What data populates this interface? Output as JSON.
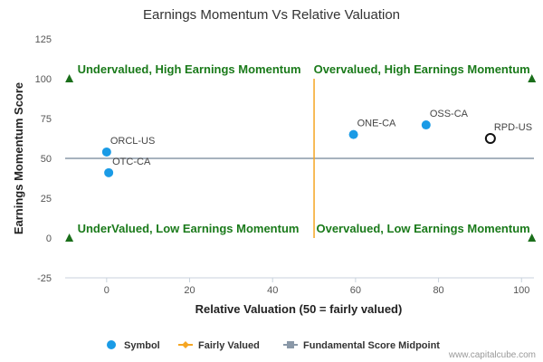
{
  "chart_data": {
    "type": "scatter",
    "title": "Earnings Momentum Vs Relative Valuation",
    "xlabel": "Relative Valuation (50 = fairly valued)",
    "ylabel": "Earnings Momentum Score",
    "xlim": [
      -10,
      103
    ],
    "ylim": [
      -25,
      125
    ],
    "x_ticks": [
      0,
      20,
      40,
      60,
      80,
      100
    ],
    "y_ticks": [
      -25,
      0,
      25,
      50,
      75,
      100,
      125
    ],
    "grid": false,
    "legend_position": "bottom",
    "series": [
      {
        "name": "Symbol",
        "color": "#1a9be6",
        "points": [
          {
            "label": "ORCL-US",
            "x": 0,
            "y": 54,
            "highlight": false
          },
          {
            "label": "OTC-CA",
            "x": 0.5,
            "y": 41,
            "highlight": false
          },
          {
            "label": "ONE-CA",
            "x": 59.5,
            "y": 65,
            "highlight": false
          },
          {
            "label": "OSS-CA",
            "x": 77,
            "y": 71,
            "highlight": false
          },
          {
            "label": "RPD-US",
            "x": 92.5,
            "y": 62.5,
            "highlight": true
          }
        ]
      },
      {
        "name": "Fairly Valued",
        "color": "#f5a623",
        "x": 50,
        "y_range": [
          0,
          100
        ]
      },
      {
        "name": "Fundamental Score Midpoint",
        "color": "#8a98a8",
        "y": 50
      }
    ],
    "corner_markers": [
      {
        "x": -9,
        "y": 100
      },
      {
        "x": 102.5,
        "y": 100
      },
      {
        "x": -9,
        "y": 0
      },
      {
        "x": 102.5,
        "y": 0
      }
    ],
    "marker_color": "#1a6e1a",
    "quadrant_labels": [
      {
        "text": "Undervalued, High Earnings Momentum",
        "x": -9,
        "y": 100,
        "anchor": "start"
      },
      {
        "text": "Overvalued, High Earnings Momentum",
        "x": 102.5,
        "y": 100,
        "anchor": "end"
      },
      {
        "text": "UnderValued, Low Earnings Momentum",
        "x": -9,
        "y": 0,
        "anchor": "start"
      },
      {
        "text": "Overvalued, Low Earnings Momentum",
        "x": 102.5,
        "y": 0,
        "anchor": "end"
      }
    ]
  },
  "credit": "www.capitalcube.com"
}
